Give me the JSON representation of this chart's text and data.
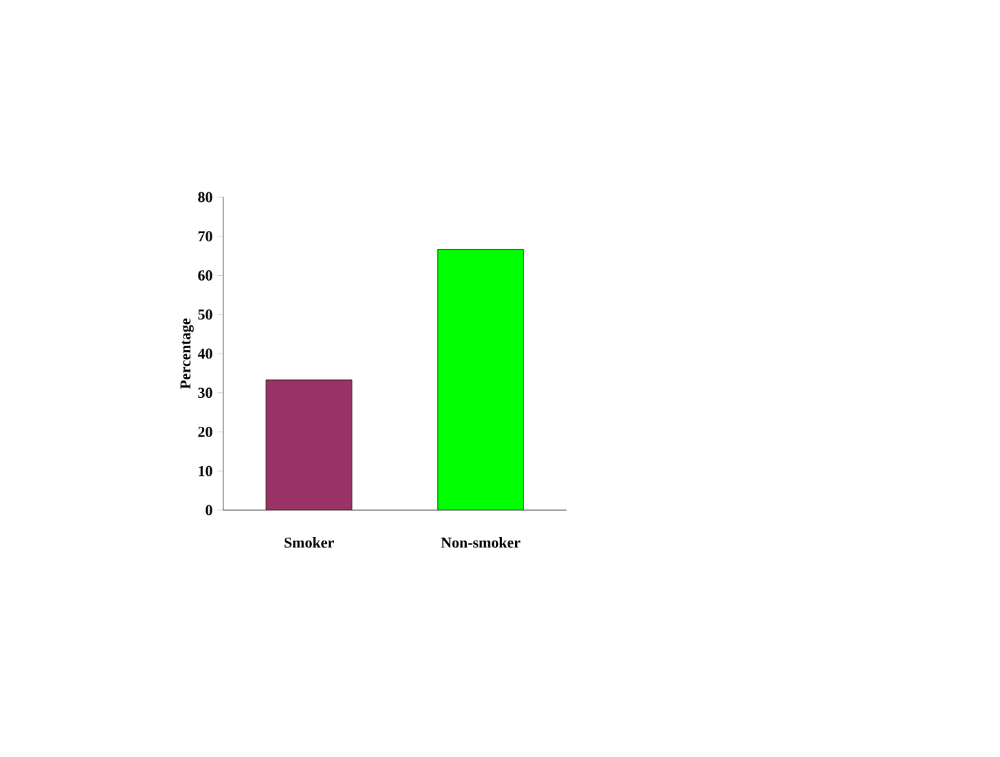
{
  "chart_data": {
    "type": "bar",
    "ylabel": "Percentage",
    "categories": [
      "Smoker",
      "Non-smoker"
    ],
    "values": [
      33.3,
      66.7
    ],
    "colors": [
      "#993366",
      "#00ff00"
    ],
    "ylim": [
      0,
      80
    ],
    "yticks": [
      0,
      10,
      20,
      30,
      40,
      50,
      60,
      70,
      80
    ]
  }
}
